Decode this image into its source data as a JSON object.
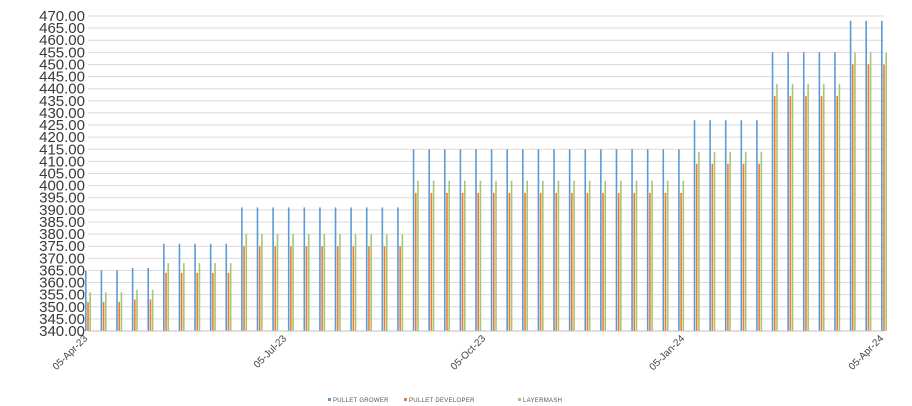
{
  "chart_data": {
    "type": "bar",
    "ylim": [
      340,
      470
    ],
    "ystep": 5,
    "y_tick_labels": [
      "340.00",
      "345.00",
      "350.00",
      "355.00",
      "360.00",
      "365.00",
      "370.00",
      "375.00",
      "380.00",
      "385.00",
      "390.00",
      "395.00",
      "400.00",
      "405.00",
      "410.00",
      "415.00",
      "420.00",
      "425.00",
      "430.00",
      "435.00",
      "440.00",
      "445.00",
      "450.00",
      "455.00",
      "460.00",
      "465.00",
      "470.00"
    ],
    "x_tick_labels": [
      "05-Apr-23",
      "05-Jul-23",
      "05-Oct-23",
      "05-Jan-24",
      "05-Apr-24"
    ],
    "grid": true,
    "legend_position": "bottom",
    "series": [
      {
        "name": "PULLET GROWER",
        "color": "#5b9bd5",
        "values": [
          365,
          365,
          365,
          366,
          366,
          376,
          376,
          376,
          376,
          376,
          391,
          391,
          391,
          391,
          391,
          391,
          391,
          391,
          391,
          391,
          391,
          415,
          415,
          415,
          415,
          415,
          415,
          415,
          415,
          415,
          415,
          415,
          415,
          415,
          415,
          415,
          415,
          415,
          415,
          427,
          427,
          427,
          427,
          427,
          455,
          455,
          455,
          455,
          455,
          468,
          468,
          468
        ]
      },
      {
        "name": "PULLET DEVELOPER",
        "color": "#ed7d31",
        "values": [
          352,
          352,
          352,
          353,
          353,
          364,
          364,
          364,
          364,
          364,
          375,
          375,
          375,
          375,
          375,
          375,
          375,
          375,
          375,
          375,
          375,
          397,
          397,
          397,
          397,
          397,
          397,
          397,
          397,
          397,
          397,
          397,
          397,
          397,
          397,
          397,
          397,
          397,
          397,
          409,
          409,
          409,
          409,
          409,
          437,
          437,
          437,
          437,
          437,
          450,
          450,
          450
        ]
      },
      {
        "name": "LAYERMASH",
        "color": "#a5c770",
        "values": [
          356,
          356,
          356,
          357,
          357,
          368,
          368,
          368,
          368,
          368,
          380,
          380,
          380,
          380,
          380,
          380,
          380,
          380,
          380,
          380,
          380,
          402,
          402,
          402,
          402,
          402,
          402,
          402,
          402,
          402,
          402,
          402,
          402,
          402,
          402,
          402,
          402,
          402,
          402,
          414,
          414,
          414,
          414,
          414,
          442,
          442,
          442,
          442,
          442,
          455,
          455,
          455
        ]
      }
    ]
  }
}
